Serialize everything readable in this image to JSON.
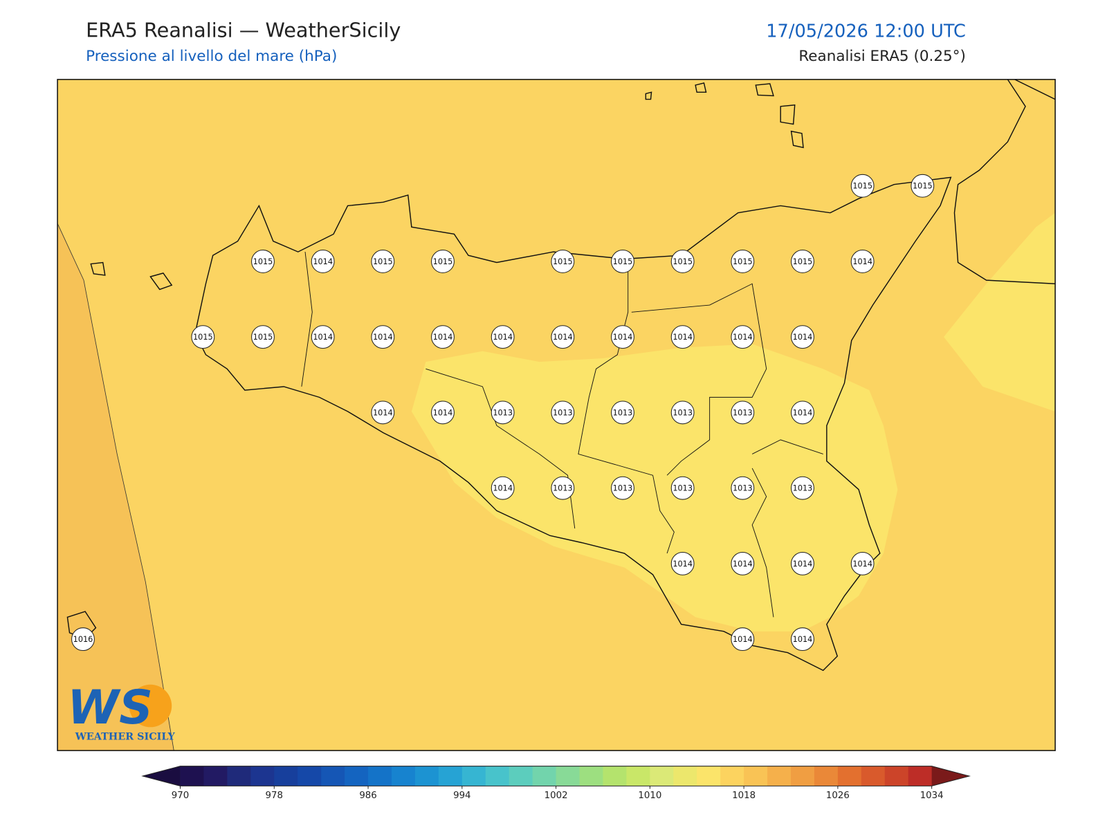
{
  "header": {
    "title": "ERA5 Reanalisi — WeatherSicily",
    "subtitle": "Pressione al livello del mare (hPa)",
    "date": "17/05/2026 12:00 UTC",
    "source": "Reanalisi ERA5 (0.25°)"
  },
  "stations": {
    "rows": [
      [
        null,
        null,
        null,
        null,
        null,
        null,
        null,
        null,
        null,
        null,
        null,
        null,
        null,
        1015,
        1015
      ],
      [
        null,
        null,
        null,
        1015,
        1014,
        1015,
        1015,
        null,
        1015,
        1015,
        1015,
        1015,
        1015,
        1014,
        null
      ],
      [
        null,
        null,
        1015,
        1015,
        1014,
        1014,
        1014,
        1014,
        1014,
        1014,
        1014,
        1014,
        1014,
        null,
        null
      ],
      [
        null,
        null,
        null,
        null,
        null,
        1014,
        1014,
        1013,
        1013,
        1013,
        1013,
        1013,
        1014,
        null,
        null
      ],
      [
        null,
        null,
        null,
        null,
        null,
        null,
        null,
        1014,
        1013,
        1013,
        1013,
        1013,
        1013,
        null,
        null
      ],
      [
        null,
        null,
        null,
        null,
        null,
        null,
        null,
        null,
        null,
        null,
        1014,
        1014,
        1014,
        1014,
        null
      ],
      [
        1016,
        null,
        null,
        null,
        null,
        null,
        null,
        null,
        null,
        null,
        null,
        1014,
        1014,
        null,
        null
      ]
    ]
  },
  "colorbar": {
    "range": [
      970,
      1034
    ],
    "ticks": [
      970,
      978,
      986,
      994,
      1002,
      1010,
      1018,
      1026,
      1034
    ],
    "colors": [
      "#1e1150",
      "#221a63",
      "#1f2a7a",
      "#1c3590",
      "#173f9c",
      "#1548a8",
      "#1556b5",
      "#1464c0",
      "#1473c8",
      "#1783cf",
      "#1c93d2",
      "#26a3d4",
      "#36b5d2",
      "#48c3cb",
      "#5ccdbd",
      "#72d4ac",
      "#88da97",
      "#9ddf80",
      "#b4e36d",
      "#c9e768",
      "#dbe977",
      "#ece76c",
      "#fbe46a",
      "#fcd35f",
      "#f9c355",
      "#f5b04b",
      "#f09e42",
      "#ea8838",
      "#e3702f",
      "#d95a2c",
      "#cc4429",
      "#bd2d27"
    ],
    "under": "#1a0d40",
    "over": "#7a1a1a"
  },
  "logo": {
    "mark": "WS",
    "text": "WEATHER SICILY"
  }
}
